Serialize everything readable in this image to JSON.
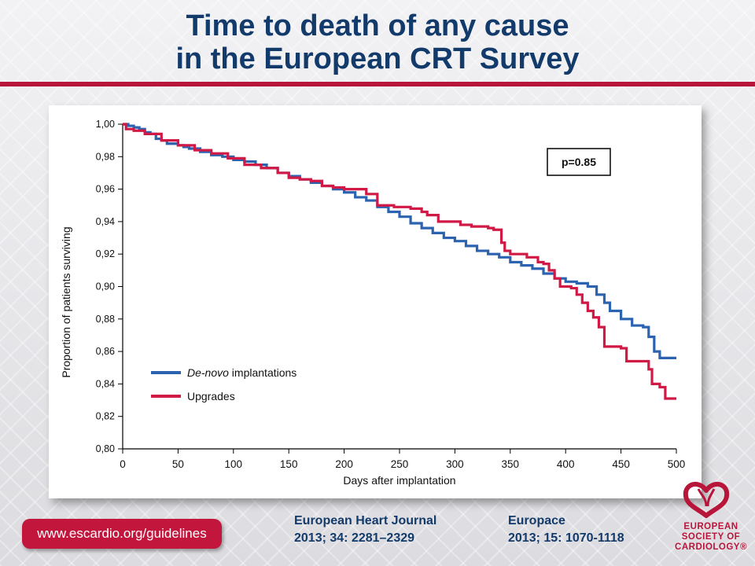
{
  "title": {
    "line1": "Time to death of any cause",
    "line2": "in the European CRT Survey"
  },
  "footer": {
    "url": "www.escardio.org/guidelines",
    "ref1": {
      "line1": "European Heart Journal",
      "line2": "2013; 34: 2281–2329"
    },
    "ref2": {
      "line1": "Europace",
      "line2": "2013; 15: 1070-1118"
    }
  },
  "logo": {
    "line1": "EUROPEAN",
    "line2": "SOCIETY OF",
    "line3": "CARDIOLOGY®",
    "icon": "esc-heart-icon",
    "color": "#b8153a"
  },
  "colors": {
    "title": "#123a6b",
    "accent": "#b8153a",
    "denovo": "#2b63b0",
    "upgrades": "#d11946"
  },
  "chart_data": {
    "type": "line",
    "xlabel": "Days after implantation",
    "ylabel": "Proportion of patients surviving",
    "xlim": [
      0,
      500
    ],
    "ylim": [
      0.8,
      1.0
    ],
    "x_ticks": [
      0,
      50,
      100,
      150,
      200,
      250,
      300,
      350,
      400,
      450,
      500
    ],
    "x_tick_labels": [
      "0",
      "50",
      "100",
      "150",
      "200",
      "250",
      "300",
      "350",
      "400",
      "450",
      "500"
    ],
    "y_ticks": [
      0.8,
      0.82,
      0.84,
      0.86,
      0.88,
      0.9,
      0.92,
      0.94,
      0.96,
      0.98,
      1.0
    ],
    "y_tick_labels": [
      "0,80",
      "0,82",
      "0,84",
      "0,86",
      "0,88",
      "0,90",
      "0,92",
      "0,94",
      "0,96",
      "0,98",
      "1,00"
    ],
    "grid": false,
    "legend_position": "bottom-left",
    "annotation": "p=0.85",
    "series": [
      {
        "name_italic": "De-novo",
        "name_rest": " implantations",
        "color": "#2b63b0",
        "step": true,
        "points": [
          [
            0,
            1.0
          ],
          [
            5,
            0.999
          ],
          [
            10,
            0.998
          ],
          [
            15,
            0.997
          ],
          [
            20,
            0.995
          ],
          [
            25,
            0.994
          ],
          [
            30,
            0.991
          ],
          [
            35,
            0.99
          ],
          [
            40,
            0.988
          ],
          [
            50,
            0.987
          ],
          [
            55,
            0.986
          ],
          [
            60,
            0.985
          ],
          [
            70,
            0.983
          ],
          [
            80,
            0.981
          ],
          [
            90,
            0.98
          ],
          [
            100,
            0.978
          ],
          [
            110,
            0.977
          ],
          [
            120,
            0.975
          ],
          [
            130,
            0.973
          ],
          [
            140,
            0.97
          ],
          [
            150,
            0.968
          ],
          [
            160,
            0.966
          ],
          [
            170,
            0.964
          ],
          [
            180,
            0.962
          ],
          [
            190,
            0.96
          ],
          [
            200,
            0.958
          ],
          [
            210,
            0.955
          ],
          [
            220,
            0.953
          ],
          [
            230,
            0.949
          ],
          [
            240,
            0.946
          ],
          [
            250,
            0.943
          ],
          [
            260,
            0.939
          ],
          [
            270,
            0.936
          ],
          [
            280,
            0.933
          ],
          [
            290,
            0.93
          ],
          [
            300,
            0.928
          ],
          [
            310,
            0.925
          ],
          [
            320,
            0.922
          ],
          [
            330,
            0.92
          ],
          [
            340,
            0.918
          ],
          [
            350,
            0.915
          ],
          [
            360,
            0.913
          ],
          [
            370,
            0.911
          ],
          [
            380,
            0.908
          ],
          [
            390,
            0.905
          ],
          [
            400,
            0.903
          ],
          [
            410,
            0.902
          ],
          [
            420,
            0.9
          ],
          [
            428,
            0.895
          ],
          [
            435,
            0.89
          ],
          [
            440,
            0.885
          ],
          [
            450,
            0.88
          ],
          [
            460,
            0.876
          ],
          [
            470,
            0.875
          ],
          [
            475,
            0.869
          ],
          [
            480,
            0.86
          ],
          [
            485,
            0.856
          ],
          [
            500,
            0.856
          ]
        ]
      },
      {
        "name": "Upgrades",
        "color": "#d11946",
        "step": true,
        "points": [
          [
            0,
            1.0
          ],
          [
            3,
            0.997
          ],
          [
            10,
            0.996
          ],
          [
            20,
            0.994
          ],
          [
            35,
            0.99
          ],
          [
            50,
            0.987
          ],
          [
            65,
            0.984
          ],
          [
            80,
            0.982
          ],
          [
            95,
            0.979
          ],
          [
            110,
            0.975
          ],
          [
            125,
            0.973
          ],
          [
            140,
            0.97
          ],
          [
            150,
            0.967
          ],
          [
            160,
            0.966
          ],
          [
            170,
            0.965
          ],
          [
            180,
            0.962
          ],
          [
            190,
            0.961
          ],
          [
            200,
            0.96
          ],
          [
            210,
            0.96
          ],
          [
            220,
            0.957
          ],
          [
            230,
            0.95
          ],
          [
            245,
            0.949
          ],
          [
            260,
            0.948
          ],
          [
            270,
            0.946
          ],
          [
            275,
            0.944
          ],
          [
            285,
            0.94
          ],
          [
            295,
            0.94
          ],
          [
            305,
            0.938
          ],
          [
            315,
            0.937
          ],
          [
            330,
            0.936
          ],
          [
            335,
            0.935
          ],
          [
            342,
            0.927
          ],
          [
            345,
            0.922
          ],
          [
            350,
            0.92
          ],
          [
            365,
            0.918
          ],
          [
            375,
            0.915
          ],
          [
            380,
            0.914
          ],
          [
            385,
            0.91
          ],
          [
            390,
            0.905
          ],
          [
            395,
            0.9
          ],
          [
            405,
            0.899
          ],
          [
            410,
            0.895
          ],
          [
            415,
            0.89
          ],
          [
            420,
            0.885
          ],
          [
            425,
            0.881
          ],
          [
            430,
            0.875
          ],
          [
            435,
            0.863
          ],
          [
            450,
            0.862
          ],
          [
            455,
            0.854
          ],
          [
            470,
            0.854
          ],
          [
            475,
            0.849
          ],
          [
            478,
            0.84
          ],
          [
            485,
            0.838
          ],
          [
            490,
            0.831
          ],
          [
            500,
            0.831
          ]
        ]
      }
    ]
  }
}
